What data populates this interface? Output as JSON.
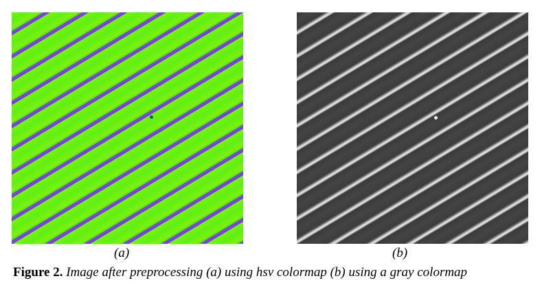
{
  "figure": {
    "panels": [
      {
        "label": "(a)",
        "colormap": "hsv",
        "colors": {
          "background": "#6ef010",
          "stripe": "#8a3ae8"
        }
      },
      {
        "label": "(b)",
        "colormap": "gray",
        "colors": {
          "background": "#404040",
          "stripe": "#dcdcdc"
        }
      }
    ],
    "caption_label": "Figure 2.",
    "caption_text": " Image after preprocessing (a) using hsv colormap (b) using a gray colormap"
  }
}
